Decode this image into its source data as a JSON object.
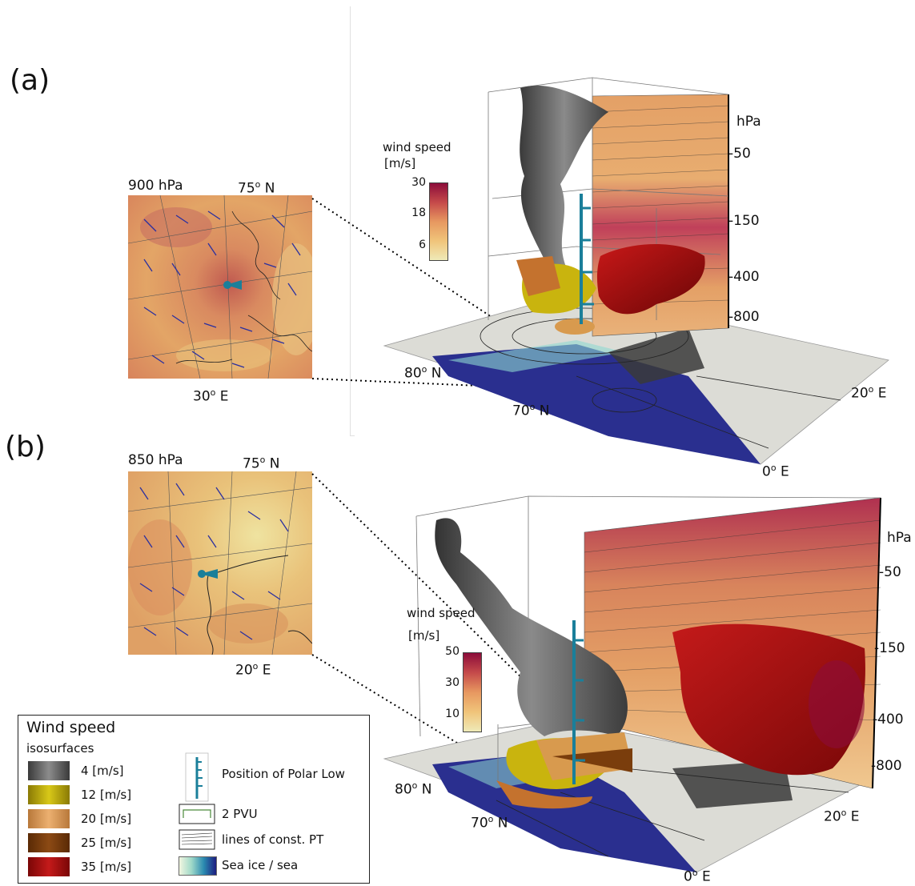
{
  "panels": [
    {
      "letter": "(a)",
      "map_level": "900 hPa",
      "map_lat_label": "75",
      "map_lon_label": "30",
      "colorbar_title_1": "wind speed",
      "colorbar_title_2": "[m/s]",
      "colorbar_ticks": [
        "30",
        "18",
        "6"
      ],
      "pressure_unit": "hPa",
      "pressure_ticks": [
        "50",
        "150",
        "400",
        "800"
      ],
      "lat_label_a": "80",
      "lat_label_b": "70",
      "lon_label_a": "20",
      "lon_label_b": "0"
    },
    {
      "letter": "(b)",
      "map_level": "850 hPa",
      "map_lat_label": "75",
      "map_lon_label": "20",
      "colorbar_title_1": "wind speed",
      "colorbar_title_2": "[m/s]",
      "colorbar_ticks": [
        "50",
        "30",
        "10"
      ],
      "pressure_unit": "hPa",
      "pressure_ticks": [
        "50",
        "150",
        "400",
        "800"
      ],
      "lat_label_a": "80",
      "lat_label_b": "70",
      "lon_label_a": "20",
      "lon_label_b": "0"
    }
  ],
  "degree_symbol": "o",
  "north": "N",
  "east": "E",
  "legend": {
    "title": "Wind speed",
    "subtitle": "isosurfaces",
    "isosurfaces": [
      {
        "label": "4 [m/s]",
        "color": "#5a5a5a"
      },
      {
        "label": "12 [m/s]",
        "color": "#c9b40e"
      },
      {
        "label": "20 [m/s]",
        "color": "#d89a4e"
      },
      {
        "label": "25 [m/s]",
        "color": "#7a3d0c"
      },
      {
        "label": "35 [m/s]",
        "color": "#a30c0c"
      }
    ],
    "items": [
      {
        "label": "Position of Polar Low"
      },
      {
        "label": "2 PVU"
      },
      {
        "label": "lines of const. PT"
      },
      {
        "label": "Sea ice / sea"
      }
    ]
  },
  "colors": {
    "sea": "#2a2f8f",
    "ice": "#dcdcd6",
    "field_low": "#f0e0a0",
    "field_mid": "#e0a46a",
    "field_high": "#b03050",
    "marker": "#1a7f9a"
  }
}
